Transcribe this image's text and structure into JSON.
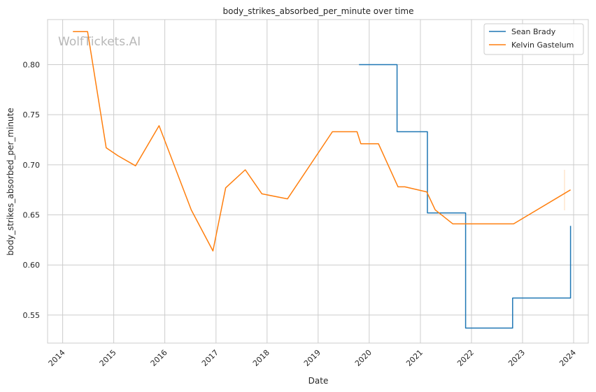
{
  "chart_data": {
    "type": "line",
    "title": "body_strikes_absorbed_per_minute over time",
    "xlabel": "Date",
    "ylabel": "body_strikes_absorbed_per_minute",
    "watermark": "WolfTickets.AI",
    "x_ticks": [
      "2014",
      "2015",
      "2016",
      "2017",
      "2018",
      "2019",
      "2020",
      "2021",
      "2022",
      "2023",
      "2024"
    ],
    "y_ticks": [
      "0.55",
      "0.60",
      "0.65",
      "0.70",
      "0.75",
      "0.80"
    ],
    "xlim": [
      "2013-09-15",
      "2024-04-15"
    ],
    "ylim": [
      0.522,
      0.845
    ],
    "grid": true,
    "legend_position": "top-right",
    "series": [
      {
        "name": "Sean Brady",
        "color": "#1f77b4",
        "step": "post",
        "points": [
          [
            "2019-10-20",
            0.8
          ],
          [
            "2020-07-18",
            0.733
          ],
          [
            "2021-02-20",
            0.652
          ],
          [
            "2021-09-01",
            0.652
          ],
          [
            "2021-11-20",
            0.537
          ],
          [
            "2022-10-22",
            0.567
          ],
          [
            "2023-04-08",
            0.567
          ],
          [
            "2023-12-10",
            0.639
          ]
        ]
      },
      {
        "name": "Kelvin Gastelum",
        "color": "#ff7f0e",
        "step": "none",
        "points": [
          [
            "2014-03-15",
            0.833
          ],
          [
            "2014-06-28",
            0.833
          ],
          [
            "2014-11-08",
            0.717
          ],
          [
            "2015-01-31",
            0.709
          ],
          [
            "2015-06-06",
            0.699
          ],
          [
            "2015-11-21",
            0.739
          ],
          [
            "2016-07-08",
            0.655
          ],
          [
            "2016-12-10",
            0.614
          ],
          [
            "2017-03-11",
            0.677
          ],
          [
            "2017-07-29",
            0.695
          ],
          [
            "2017-11-25",
            0.671
          ],
          [
            "2018-05-27",
            0.666
          ],
          [
            "2019-04-13",
            0.733
          ],
          [
            "2019-10-06",
            0.733
          ],
          [
            "2019-11-02",
            0.721
          ],
          [
            "2020-03-07",
            0.721
          ],
          [
            "2020-07-25",
            0.678
          ],
          [
            "2020-09-12",
            0.678
          ],
          [
            "2021-02-15",
            0.673
          ],
          [
            "2021-04-17",
            0.655
          ],
          [
            "2021-08-21",
            0.641
          ],
          [
            "2022-10-29",
            0.641
          ],
          [
            "2023-12-10",
            0.675
          ]
        ]
      }
    ]
  }
}
